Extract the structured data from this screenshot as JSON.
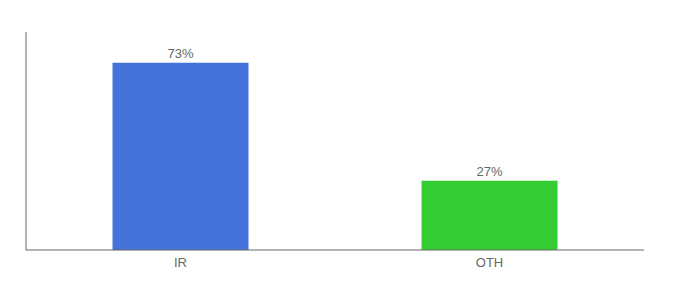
{
  "chart_data": {
    "type": "bar",
    "categories": [
      "IR",
      "OTH"
    ],
    "values": [
      73,
      27
    ],
    "value_labels": [
      "73%",
      "27%"
    ],
    "colors": [
      "#4472db",
      "#33cc33"
    ],
    "ylim": [
      0,
      85
    ],
    "grid": false,
    "data_labels": true,
    "tick_labels": "x"
  }
}
